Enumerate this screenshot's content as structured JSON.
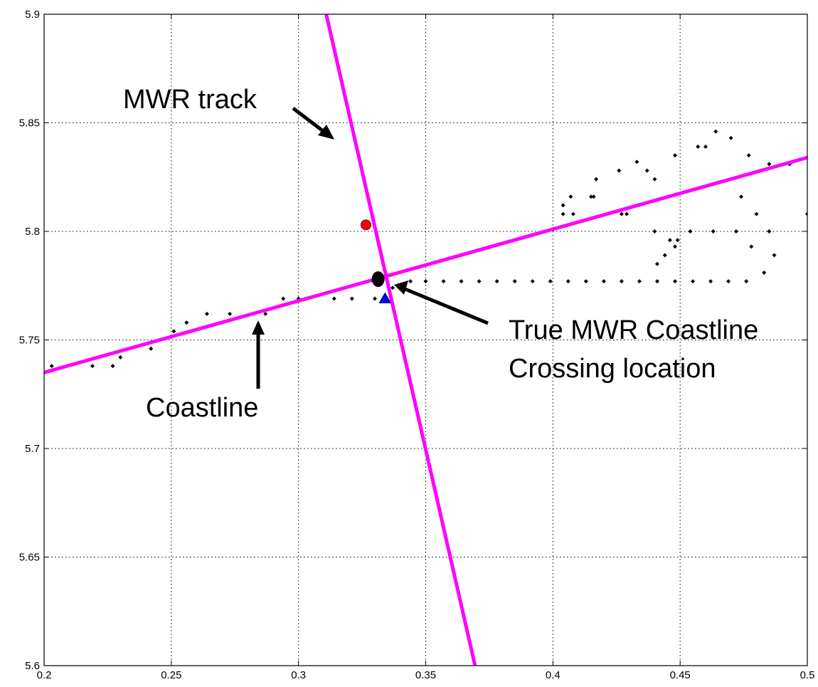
{
  "chart_data": {
    "type": "line",
    "title": "",
    "xlabel": "",
    "ylabel": "",
    "xlim": [
      0.2,
      0.5
    ],
    "ylim": [
      5.6,
      5.9
    ],
    "grid": true,
    "xticks": [
      0.2,
      0.25,
      0.3,
      0.35,
      0.4,
      0.45,
      0.5
    ],
    "xtick_labels": [
      "0.2",
      "0.25",
      "0.3",
      "0.35",
      "0.4",
      "0.45",
      "0.5"
    ],
    "yticks": [
      5.6,
      5.65,
      5.7,
      5.75,
      5.8,
      5.85,
      5.9
    ],
    "ytick_labels": [
      "5.6",
      "5.65",
      "5.7",
      "5.75",
      "5.8",
      "5.85",
      "5.9"
    ],
    "lines": [
      {
        "name": "MWR track",
        "color": "#ff00ff",
        "x": [
          0.3109,
          0.3694
        ],
        "y": [
          5.9,
          5.6
        ]
      },
      {
        "name": "Coastline",
        "color": "#ff00ff",
        "x": [
          0.2,
          0.5
        ],
        "y": [
          5.735,
          5.834
        ]
      }
    ],
    "coastline_points": {
      "color": "#000000",
      "marker": "dot",
      "x": [
        0.203,
        0.219,
        0.227,
        0.23,
        0.242,
        0.251,
        0.256,
        0.264,
        0.273,
        0.287,
        0.294,
        0.3,
        0.314,
        0.321,
        0.33,
        0.337,
        0.344,
        0.35,
        0.357,
        0.364,
        0.371,
        0.378,
        0.385,
        0.392,
        0.399,
        0.406,
        0.413,
        0.42,
        0.427,
        0.434,
        0.441,
        0.448,
        0.455,
        0.462,
        0.469,
        0.476,
        0.483,
        0.487,
        0.485,
        0.48,
        0.474,
        0.404,
        0.407,
        0.415,
        0.417,
        0.426,
        0.433,
        0.437,
        0.44,
        0.448,
        0.457,
        0.46,
        0.464,
        0.47,
        0.477,
        0.485,
        0.493,
        0.5,
        0.404,
        0.408,
        0.416,
        0.427,
        0.429,
        0.44,
        0.446,
        0.448,
        0.454,
        0.463,
        0.472,
        0.478,
        0.441,
        0.444,
        0.449
      ],
      "y": [
        5.738,
        5.738,
        5.738,
        5.742,
        5.746,
        5.754,
        5.758,
        5.762,
        5.762,
        5.762,
        5.769,
        5.769,
        5.769,
        5.769,
        5.769,
        5.774,
        5.777,
        5.777,
        5.777,
        5.777,
        5.777,
        5.777,
        5.777,
        5.777,
        5.777,
        5.777,
        5.777,
        5.777,
        5.777,
        5.777,
        5.777,
        5.777,
        5.777,
        5.777,
        5.777,
        5.777,
        5.781,
        5.789,
        5.8,
        5.808,
        5.816,
        5.812,
        5.816,
        5.816,
        5.824,
        5.828,
        5.832,
        5.828,
        5.824,
        5.835,
        5.839,
        5.839,
        5.846,
        5.843,
        5.835,
        5.831,
        5.831,
        5.808,
        5.808,
        5.808,
        5.816,
        5.808,
        5.808,
        5.8,
        5.796,
        5.793,
        5.8,
        5.8,
        5.8,
        5.793,
        5.785,
        5.789,
        5.796
      ]
    },
    "markers": [
      {
        "shape": "circle",
        "color": "#ff0000",
        "x": 0.3265,
        "y": 5.803
      },
      {
        "shape": "ellipse",
        "color": "#000000",
        "x": 0.3313,
        "y": 5.778
      },
      {
        "shape": "triangle",
        "color": "#0000ff",
        "x": 0.334,
        "y": 5.769
      }
    ],
    "annotations": [
      {
        "text": "MWR track"
      },
      {
        "text": "Coastline"
      },
      {
        "text": "True MWR Coastline"
      },
      {
        "text": "Crossing location"
      }
    ]
  }
}
